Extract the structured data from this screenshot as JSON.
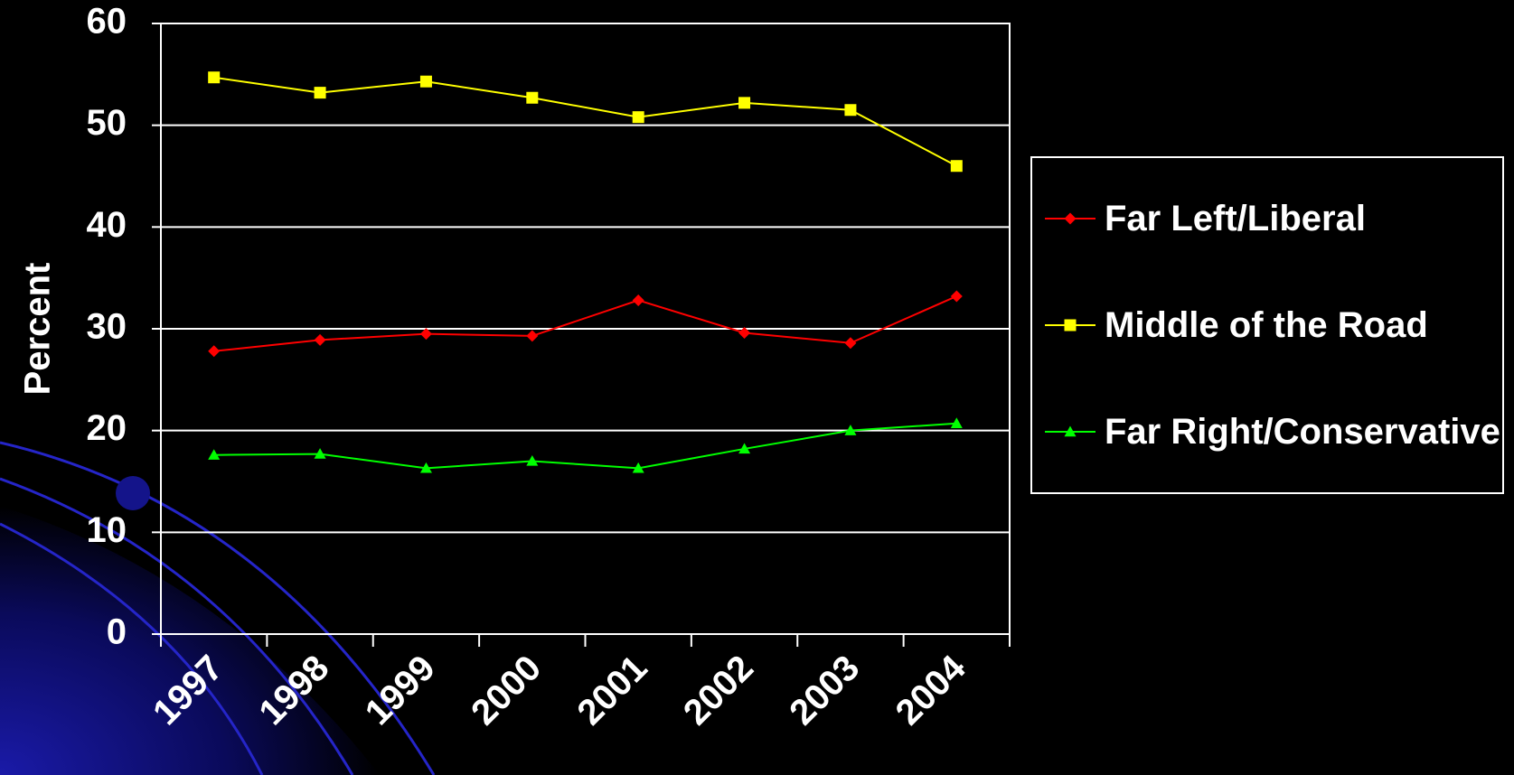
{
  "chart_data": {
    "type": "line",
    "y_label": "Percent",
    "categories": [
      "1997",
      "1998",
      "1999",
      "2000",
      "2001",
      "2002",
      "2003",
      "2004"
    ],
    "series": [
      {
        "name": "Far Left/Liberal",
        "color": "#ff0000",
        "marker": "diamond",
        "values": [
          27.8,
          28.9,
          29.5,
          29.3,
          32.8,
          29.6,
          28.6,
          33.2
        ]
      },
      {
        "name": "Middle of the Road",
        "color": "#ffff00",
        "marker": "square",
        "values": [
          54.7,
          53.2,
          54.3,
          52.7,
          50.8,
          52.2,
          51.5,
          46.0
        ]
      },
      {
        "name": "Far Right/Conservative",
        "color": "#00ff00",
        "marker": "triangle",
        "values": [
          17.6,
          17.7,
          16.3,
          17.0,
          16.3,
          18.2,
          20.0,
          20.7
        ]
      }
    ],
    "ylim": [
      0,
      60
    ],
    "yticks": [
      0,
      10,
      20,
      30,
      40,
      50,
      60
    ],
    "grid": true,
    "legend": "right"
  }
}
